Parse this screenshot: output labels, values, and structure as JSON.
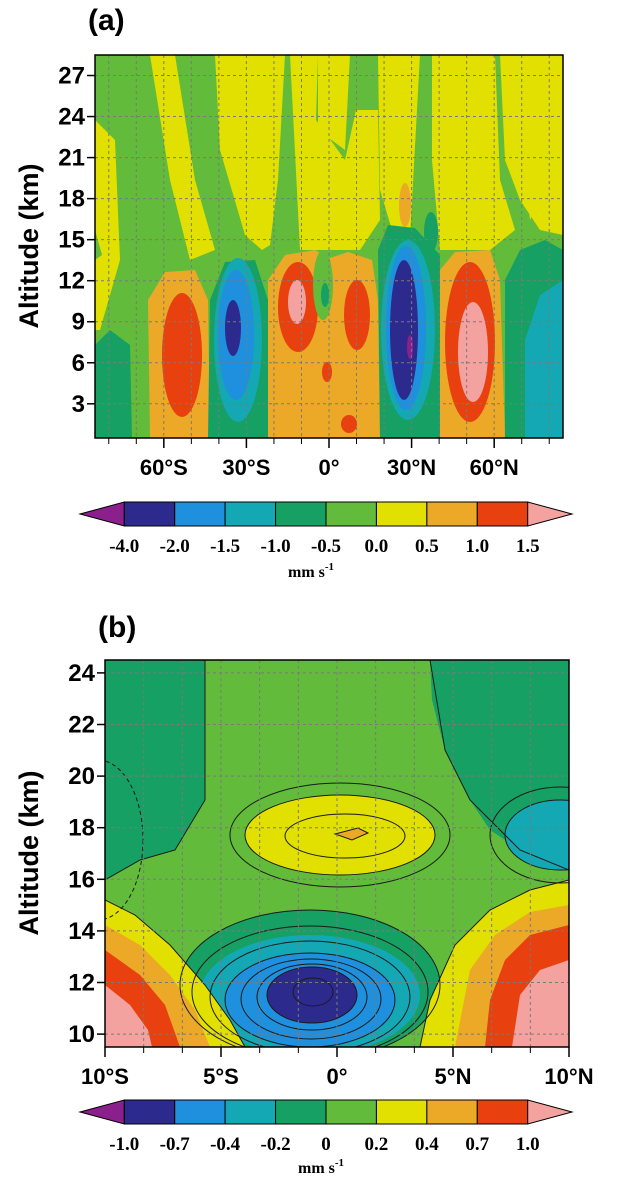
{
  "colors": {
    "levels": [
      "#8B1F8C",
      "#2D2A8E",
      "#1E90DD",
      "#14A7B4",
      "#16A064",
      "#62BB3A",
      "#E2E000",
      "#EBA927",
      "#E8400E",
      "#F4A2A0"
    ],
    "grid": "#7a7a7a",
    "contour_line": "#1a1a1a"
  },
  "chart_data": [
    {
      "panel": "(a)",
      "type": "heatmap",
      "ylabel": "Altitude (km)",
      "x_ticks": [
        "60°S",
        "30°S",
        "0°",
        "30°N",
        "60°N"
      ],
      "x_tick_values": [
        -60,
        -30,
        0,
        30,
        60
      ],
      "y_ticks": [
        "3",
        "6",
        "9",
        "12",
        "15",
        "18",
        "21",
        "24",
        "27"
      ],
      "y_tick_values": [
        3,
        6,
        9,
        12,
        15,
        18,
        21,
        24,
        27
      ],
      "xlim": [
        -85,
        85
      ],
      "ylim": [
        0.5,
        28.5
      ],
      "grid": true,
      "colorbar": {
        "labels": [
          "-4.0",
          "-2.0",
          "-1.5",
          "-1.0",
          "-0.5",
          "0.0",
          "0.5",
          "1.0",
          "1.5"
        ],
        "unit": "mm s",
        "unit_exp": "-1"
      },
      "cells": [
        {
          "lat": -55,
          "alt": 6,
          "level": 8
        },
        {
          "lat": -40,
          "alt": 7,
          "level": 1
        },
        {
          "lat": -16,
          "alt": 10,
          "level": 9
        },
        {
          "lat": 5,
          "alt": 9,
          "level": 8
        },
        {
          "lat": 23,
          "alt": 7,
          "level": 1
        },
        {
          "lat": 52,
          "alt": 6,
          "level": 9
        }
      ]
    },
    {
      "panel": "(b)",
      "type": "heatmap",
      "ylabel": "Altitude (km)",
      "x_ticks": [
        "10°S",
        "5°S",
        "0°",
        "5°N",
        "10°N"
      ],
      "x_tick_values": [
        -10,
        -5,
        0,
        5,
        10
      ],
      "y_ticks": [
        "10",
        "12",
        "14",
        "16",
        "18",
        "20",
        "22",
        "24"
      ],
      "y_tick_values": [
        10,
        12,
        14,
        16,
        18,
        20,
        22,
        24
      ],
      "xlim": [
        -10,
        10
      ],
      "ylim": [
        9.5,
        24.5
      ],
      "grid": true,
      "colorbar": {
        "labels": [
          "-1.0",
          "-0.7",
          "-0.4",
          "-0.2",
          "0",
          "0.2",
          "0.4",
          "0.7",
          "1.0"
        ],
        "unit": "mm s",
        "unit_exp": "-1"
      },
      "cells": [
        {
          "lat": -1.2,
          "alt": 11.4,
          "level": 1
        },
        {
          "lat": 0,
          "alt": 16.5,
          "level": 6
        },
        {
          "lat": 9,
          "alt": 11,
          "level": 9
        },
        {
          "lat": -9.5,
          "alt": 11,
          "level": 9
        }
      ]
    }
  ]
}
